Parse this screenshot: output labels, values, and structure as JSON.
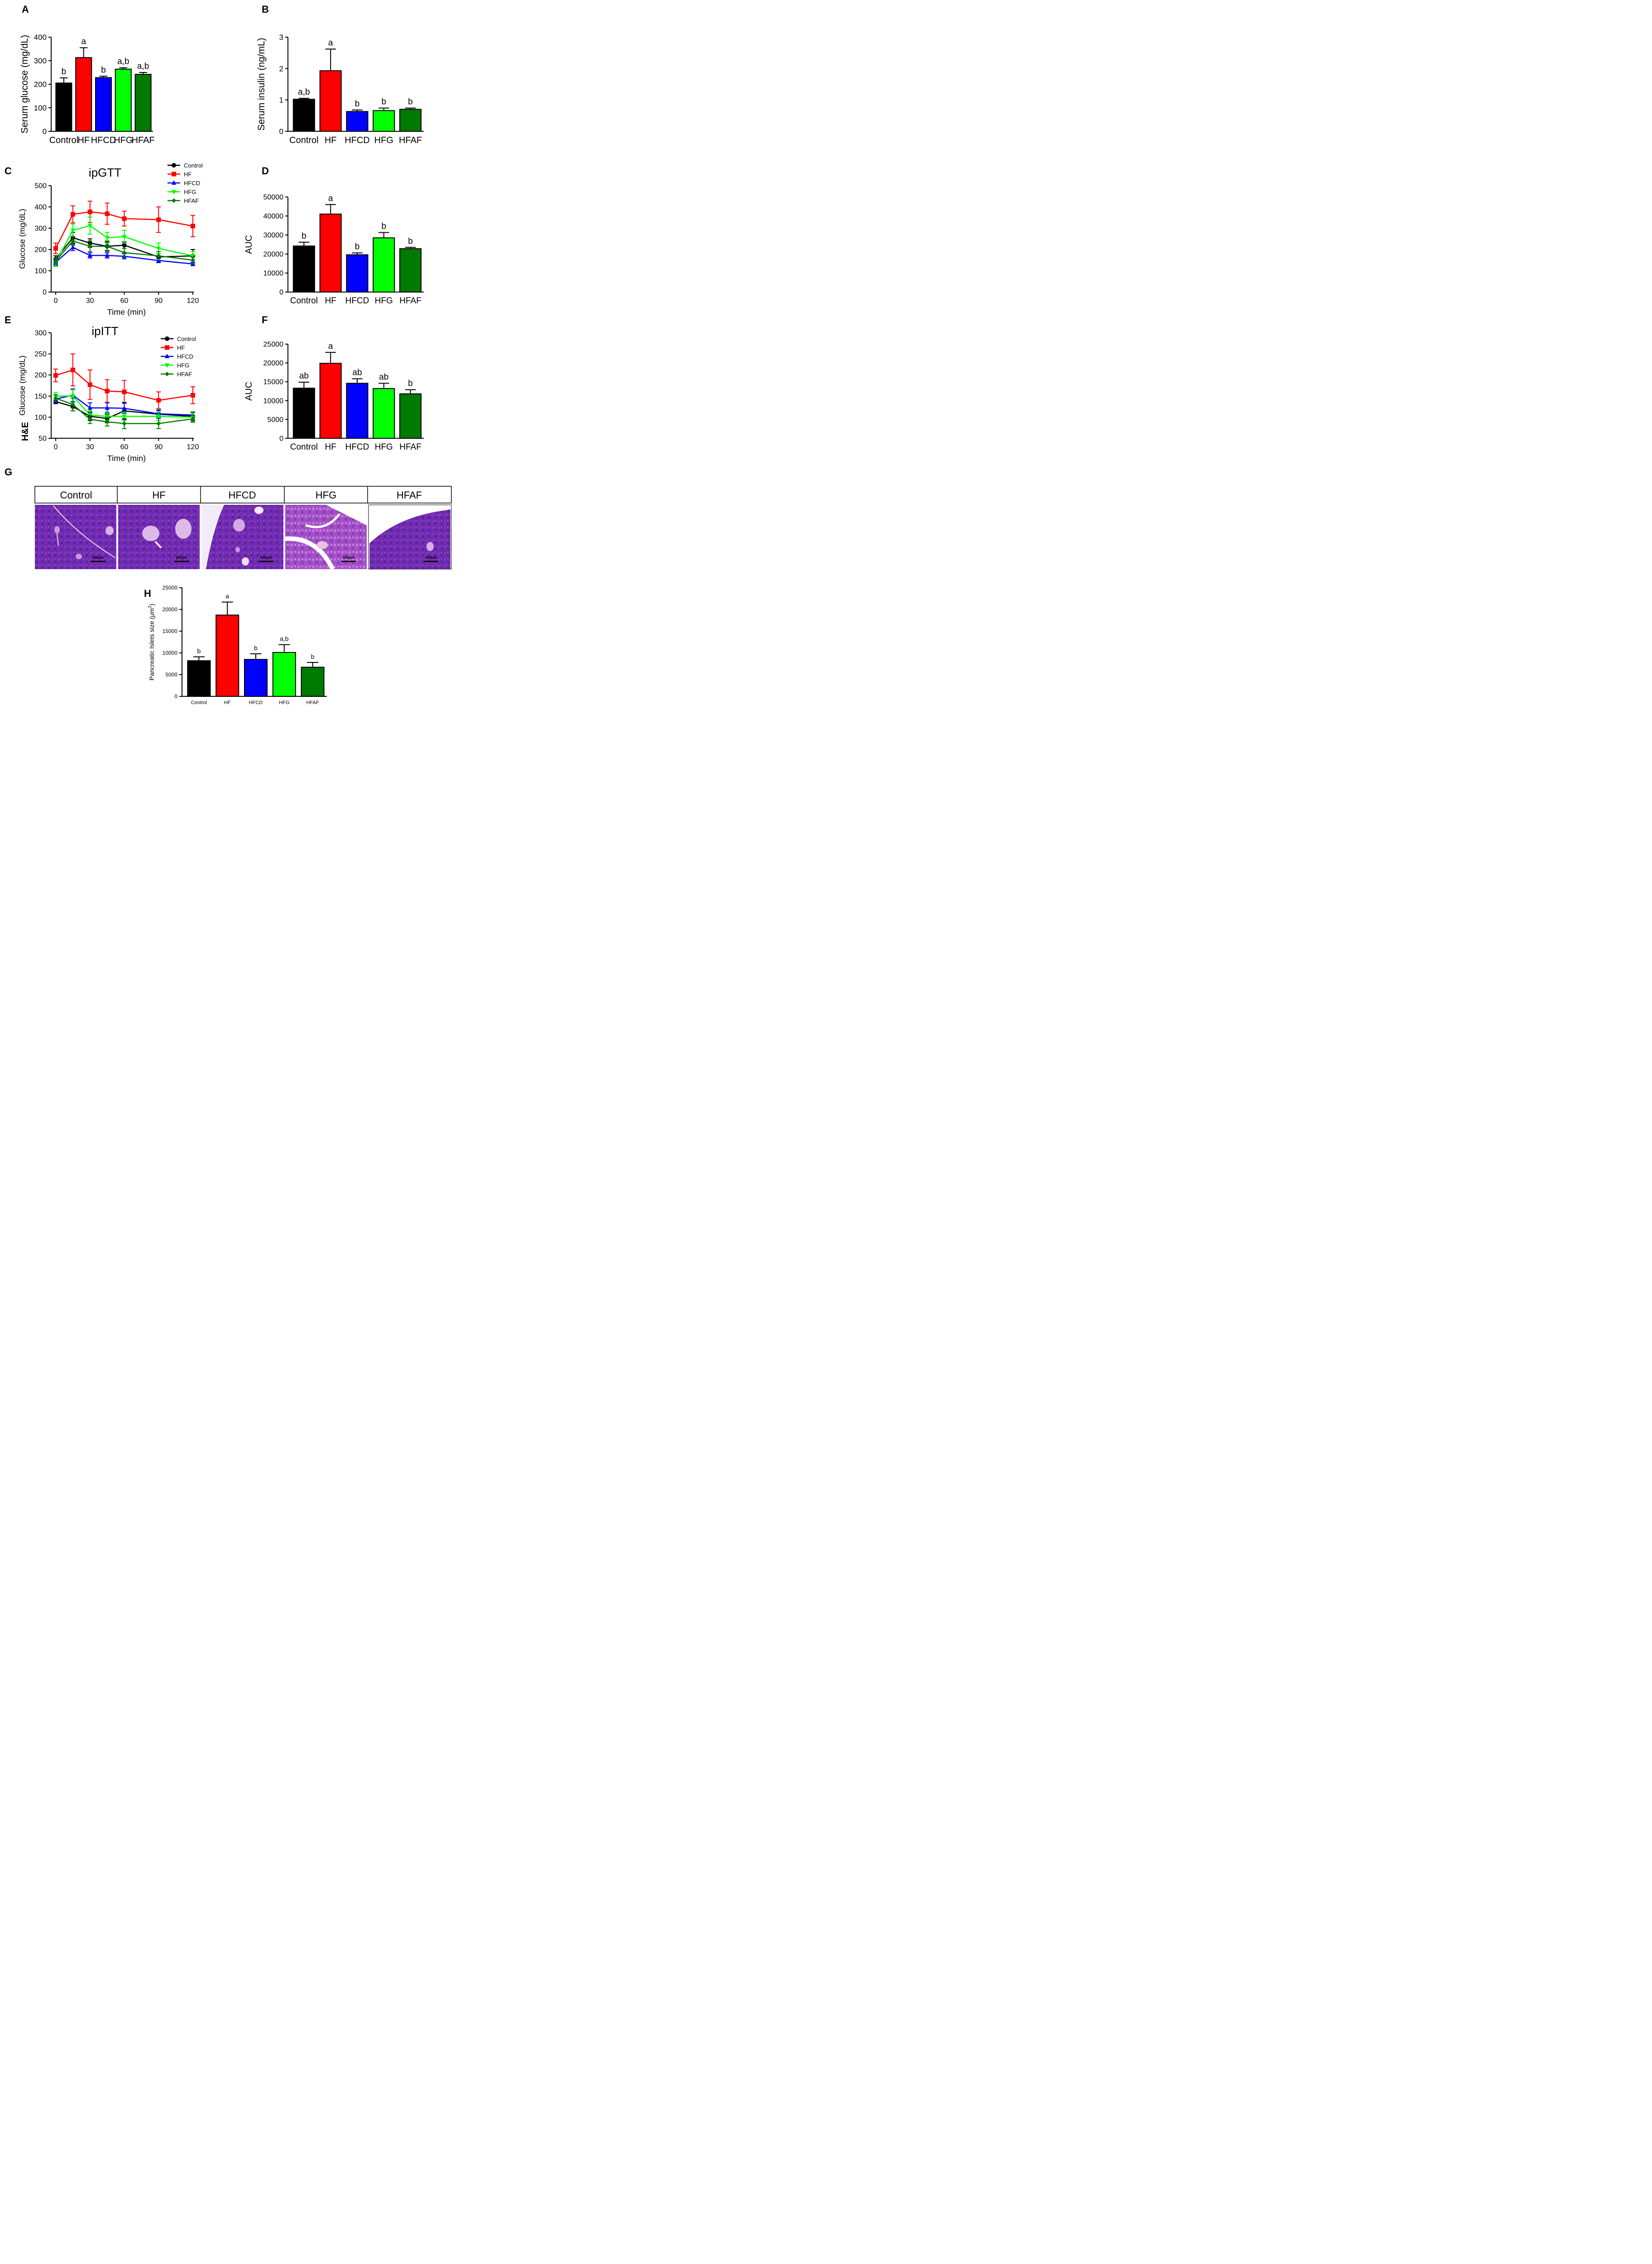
{
  "colors": {
    "control": "#000000",
    "hf": "#ff0000",
    "hfcd": "#0000ff",
    "hfg": "#00ff00",
    "hfaf": "#007a00"
  },
  "panel_g": {
    "letter": "G",
    "row_label": "H&E",
    "groups": [
      "Control",
      "HF",
      "HFCD",
      "HFG",
      "HFAF"
    ],
    "scale_bar_label": "100μm"
  },
  "chart_data": [
    {
      "panel": "A",
      "type": "bar",
      "categories": [
        "Control",
        "HF",
        "HFCD",
        "HFG",
        "HFAF"
      ],
      "values": [
        205,
        313,
        228,
        264,
        242
      ],
      "errors": [
        22,
        42,
        6,
        6,
        8
      ],
      "significance": [
        "b",
        "a",
        "b",
        "a,b",
        "a,b"
      ],
      "ylabel": "Serum glucose (mg/dL)",
      "ylim": [
        0,
        400
      ],
      "yticks": [
        "0",
        "100",
        "200",
        "300",
        "400"
      ]
    },
    {
      "panel": "B",
      "type": "bar",
      "categories": [
        "Control",
        "HF",
        "HFCD",
        "HFG",
        "HFAF"
      ],
      "values": [
        1.02,
        1.93,
        0.63,
        0.66,
        0.7
      ],
      "errors": [
        0.03,
        0.69,
        0.05,
        0.08,
        0.04
      ],
      "significance": [
        "a,b",
        "a",
        "b",
        "b",
        "b"
      ],
      "ylabel": "Serum insulin (ng/mL)",
      "ylim": [
        0,
        3
      ],
      "yticks": [
        "0",
        "1",
        "2",
        "3"
      ]
    },
    {
      "panel": "C",
      "type": "line",
      "title": "ipGTT",
      "xlabel": "Time (min)",
      "ylabel": "Glucose (mg/dL)",
      "x": [
        0,
        15,
        30,
        45,
        60,
        90,
        120
      ],
      "xticks": [
        "0",
        "30",
        "60",
        "90",
        "120"
      ],
      "ylim": [
        0,
        500
      ],
      "yticks": [
        "0",
        "100",
        "200",
        "300",
        "400",
        "500"
      ],
      "series": [
        {
          "name": "Control",
          "values": [
            155,
            255,
            230,
            215,
            220,
            165,
            170
          ],
          "errors": [
            15,
            25,
            20,
            20,
            15,
            15,
            30
          ]
        },
        {
          "name": "HF",
          "values": [
            205,
            365,
            377,
            368,
            345,
            340,
            310
          ],
          "errors": [
            25,
            40,
            50,
            50,
            35,
            60,
            50
          ]
        },
        {
          "name": "HFCD",
          "values": [
            140,
            210,
            172,
            172,
            168,
            148,
            132
          ],
          "errors": [
            15,
            15,
            12,
            12,
            12,
            10,
            8
          ]
        },
        {
          "name": "HFG",
          "values": [
            140,
            290,
            312,
            255,
            260,
            205,
            170
          ],
          "errors": [
            20,
            30,
            40,
            25,
            30,
            25,
            20
          ]
        },
        {
          "name": "HFAF",
          "values": [
            145,
            240,
            215,
            215,
            185,
            170,
            150
          ],
          "errors": [
            15,
            20,
            25,
            25,
            20,
            20,
            15
          ]
        }
      ]
    },
    {
      "panel": "D",
      "type": "bar",
      "categories": [
        "Control",
        "HF",
        "HFCD",
        "HFG",
        "HFAF"
      ],
      "values": [
        24200,
        41000,
        19600,
        28500,
        22800
      ],
      "errors": [
        2000,
        5000,
        1000,
        2800,
        700
      ],
      "significance": [
        "b",
        "a",
        "b",
        "b",
        "b"
      ],
      "ylabel": "AUC",
      "ylim": [
        0,
        50000
      ],
      "yticks": [
        "0",
        "10000",
        "20000",
        "30000",
        "40000",
        "50000"
      ]
    },
    {
      "panel": "E",
      "type": "line",
      "title": "ipITT",
      "xlabel": "Time (min)",
      "ylabel": "Glucose (mg/dL)",
      "x": [
        0,
        15,
        30,
        45,
        60,
        90,
        120
      ],
      "xticks": [
        "0",
        "30",
        "60",
        "90",
        "120"
      ],
      "ylim": [
        50,
        300
      ],
      "yticks": [
        "50",
        "100",
        "150",
        "200",
        "250",
        "300"
      ],
      "series": [
        {
          "name": "Control",
          "values": [
            137,
            125,
            102,
            97,
            115,
            107,
            102
          ],
          "errors": [
            5,
            10,
            10,
            10,
            20,
            10,
            10
          ]
        },
        {
          "name": "HF",
          "values": [
            199,
            212,
            177,
            162,
            160,
            140,
            152
          ],
          "errors": [
            15,
            38,
            35,
            27,
            27,
            20,
            20
          ]
        },
        {
          "name": "HFCD",
          "values": [
            143,
            152,
            122,
            122,
            121,
            108,
            105
          ],
          "errors": [
            10,
            15,
            12,
            12,
            12,
            8,
            5
          ]
        },
        {
          "name": "HFG",
          "values": [
            150,
            150,
            105,
            102,
            102,
            102,
            100
          ],
          "errors": [
            8,
            15,
            10,
            10,
            10,
            10,
            10
          ]
        },
        {
          "name": "HFAF",
          "values": [
            145,
            130,
            95,
            89,
            85,
            85,
            96
          ],
          "errors": [
            8,
            15,
            10,
            10,
            12,
            12,
            8
          ]
        }
      ]
    },
    {
      "panel": "F",
      "type": "bar",
      "categories": [
        "Control",
        "HF",
        "HFCD",
        "HFG",
        "HFAF"
      ],
      "values": [
        13300,
        19900,
        14600,
        13200,
        11800
      ],
      "errors": [
        1600,
        2900,
        1200,
        1400,
        1100
      ],
      "significance": [
        "ab",
        "a",
        "ab",
        "ab",
        "b"
      ],
      "ylabel": "AUC",
      "ylim": [
        0,
        25000
      ],
      "yticks": [
        "0",
        "5000",
        "10000",
        "15000",
        "20000",
        "25000"
      ]
    },
    {
      "panel": "H",
      "type": "bar",
      "categories": [
        "Control",
        "HF",
        "HFCD",
        "HFG",
        "HFAF"
      ],
      "values": [
        8200,
        18700,
        8500,
        10100,
        6700
      ],
      "errors": [
        900,
        3000,
        1300,
        1800,
        1100
      ],
      "significance": [
        "b",
        "a",
        "b",
        "a,b",
        "b"
      ],
      "ylabel_main": "Pancreatic Islets size  (μm",
      "ylabel_sup": "2",
      "ylabel_close": ")",
      "ylim": [
        0,
        25000
      ],
      "yticks": [
        "0",
        "5000",
        "10000",
        "15000",
        "20000",
        "25000"
      ]
    }
  ]
}
